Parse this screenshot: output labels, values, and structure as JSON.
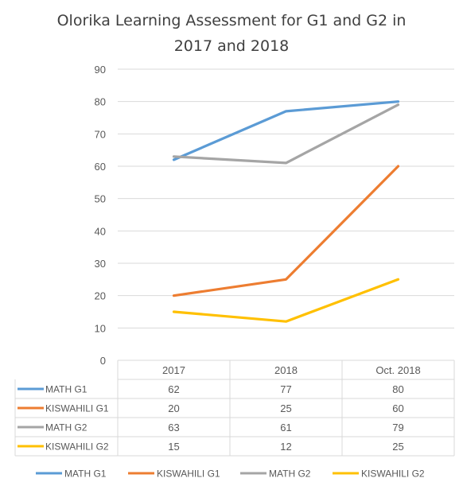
{
  "chart_data": {
    "type": "line",
    "title_lines": [
      "Olorika Learning Assessment for G1 and G2 in",
      "2017 and 2018"
    ],
    "xlabel": "",
    "ylabel": "",
    "categories": [
      "2017",
      "2018",
      "Oct. 2018"
    ],
    "ylim": [
      0,
      90
    ],
    "yticks": [
      "0",
      "10",
      "20",
      "30",
      "40",
      "50",
      "60",
      "70",
      "80",
      "90"
    ],
    "grid": true,
    "legend_position": "bottom",
    "data_table": true,
    "series": [
      {
        "name": "MATH G1",
        "color": "#5B9BD5",
        "values": [
          62,
          77,
          80
        ]
      },
      {
        "name": "KISWAHILI G1",
        "color": "#ED7D31",
        "values": [
          20,
          25,
          60
        ]
      },
      {
        "name": "MATH G2",
        "color": "#A5A5A5",
        "values": [
          63,
          61,
          79
        ]
      },
      {
        "name": "KISWAHILI G2",
        "color": "#FFC000",
        "values": [
          15,
          12,
          25
        ]
      }
    ]
  }
}
